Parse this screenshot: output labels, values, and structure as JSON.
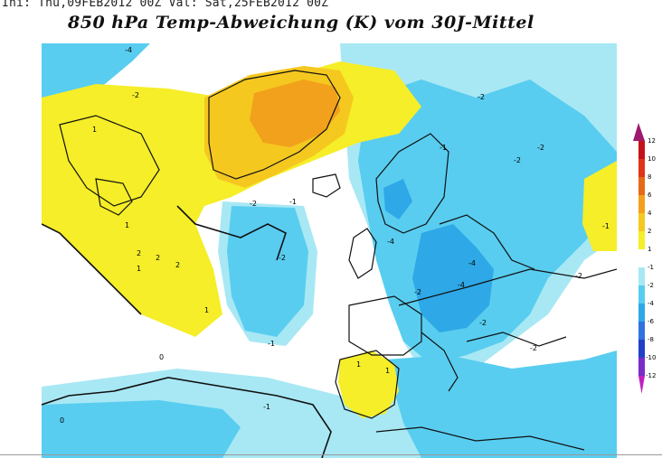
{
  "header": {
    "init_valid": "Ini: Thu,09FEB2012 00Z Val: Sat,25FEB2012 00Z",
    "title": "850 hPa Temp-Abweichung (K) vom 30J-Mittel"
  },
  "colors": {
    "plus12": "#9e1a6e",
    "plus10": "#c4121a",
    "plus8": "#e03418",
    "plus6": "#e46a18",
    "plus4": "#f2a11c",
    "plus2": "#f5c820",
    "plus1": "#f5ee28",
    "neutral": "#ffffff",
    "minus1": "#a8e8f4",
    "minus2": "#58cdf0",
    "minus4": "#2ea8e6",
    "minus6": "#2f73de",
    "minus8": "#2140c8",
    "minus10": "#7a2cc6",
    "minus12": "#c020c0",
    "coast": "#111111"
  },
  "legend": {
    "labels": [
      "12",
      "10",
      "8",
      "6",
      "4",
      "2",
      "1",
      "-1",
      "-2",
      "-4",
      "-6",
      "-8",
      "-10",
      "-12"
    ]
  },
  "contour_labels": {
    "plus1": "1",
    "plus2": "2",
    "minus1": "-1",
    "minus2": "-2",
    "minus4": "-4",
    "zero": "0"
  }
}
